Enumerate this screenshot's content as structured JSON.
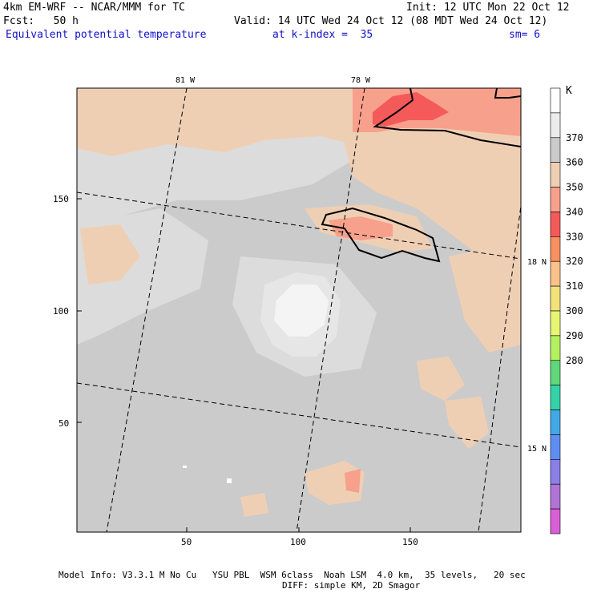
{
  "header": {
    "model_title": "4km EM-WRF -- NCAR/MMM for TC",
    "init": "Init: 12 UTC Mon 22 Oct 12",
    "fcst": "Fcst:   50 h",
    "valid": "Valid: 14 UTC Wed 24 Oct 12 (08 MDT Wed 24 Oct 12)",
    "field_name": "Equivalent potential temperature",
    "k_index": "at k-index =  35",
    "smoothing": "sm= 6"
  },
  "axes": {
    "top_lon_labels": [
      "81 W",
      "78 W"
    ],
    "right_lat_labels": [
      "18 N",
      "15 N"
    ],
    "y_ticks": [
      "150",
      "100",
      "50"
    ],
    "x_ticks": [
      "50",
      "100",
      "150"
    ]
  },
  "colorbar": {
    "unit": "K",
    "levels": [
      "370",
      "360",
      "350",
      "340",
      "330",
      "320",
      "310",
      "300",
      "290",
      "280"
    ],
    "colors": [
      "#ffffff",
      "#ececec",
      "#cbcbcb",
      "#efcfb4",
      "#f7a08c",
      "#f45a5a",
      "#f78f5f",
      "#f8c28a",
      "#f2e27a",
      "#e8f573",
      "#b5f060",
      "#5fd87a",
      "#35d2a8",
      "#42a9e6",
      "#5f8ef2",
      "#8b7fe6",
      "#b073d6",
      "#d95fd6"
    ]
  },
  "map": {
    "background_color": "#cbcbcb"
  },
  "footer": {
    "line1": "Model Info: V3.3.1 M No Cu   YSU PBL  WSM 6class  Noah LSM  4.0 km,  35 levels,   20 sec",
    "line2": "DIFF: simple KM, 2D Smagor"
  }
}
